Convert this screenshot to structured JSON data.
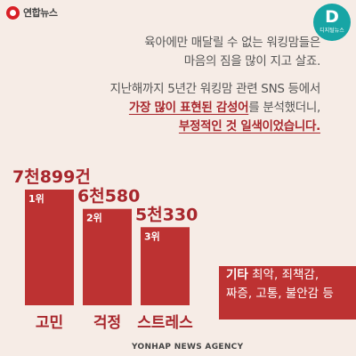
{
  "brand": {
    "logo_text": "연합뉴스",
    "badge_letter": "D",
    "badge_sub": "디지털뉴스"
  },
  "intro": {
    "line1": "육아에만 매달릴 수 없는 워킹맘들은",
    "line2": "마음의 짐을 많이 지고 살죠.",
    "line3": "지난해까지 5년간 워킹맘 관련 SNS 등에서",
    "line4_em": "가장 많이 표현된 감성어",
    "line4_rest": "를 분석했더니,",
    "line5_em": "부정적인 것 일색이었습니다."
  },
  "chart_data": {
    "type": "bar",
    "categories": [
      "고민",
      "걱정",
      "스트레스"
    ],
    "values": [
      7899,
      6580,
      5330
    ],
    "value_labels": [
      "7천899건",
      "6천580",
      "5천330"
    ],
    "ranks": [
      "1위",
      "2위",
      "3위"
    ],
    "title": "",
    "xlabel": "",
    "ylabel": ""
  },
  "etc": {
    "label": "기타",
    "line1_rest": "최악, 죄책감,",
    "line2": "짜증, 고통, 불안감 등"
  },
  "footer": {
    "credit": "YONHAP NEWS AGENCY"
  },
  "colors": {
    "bar": "#bd3232",
    "accent_text": "#a8262c",
    "background": "#f6ece6",
    "badge": "#17a5a5"
  }
}
